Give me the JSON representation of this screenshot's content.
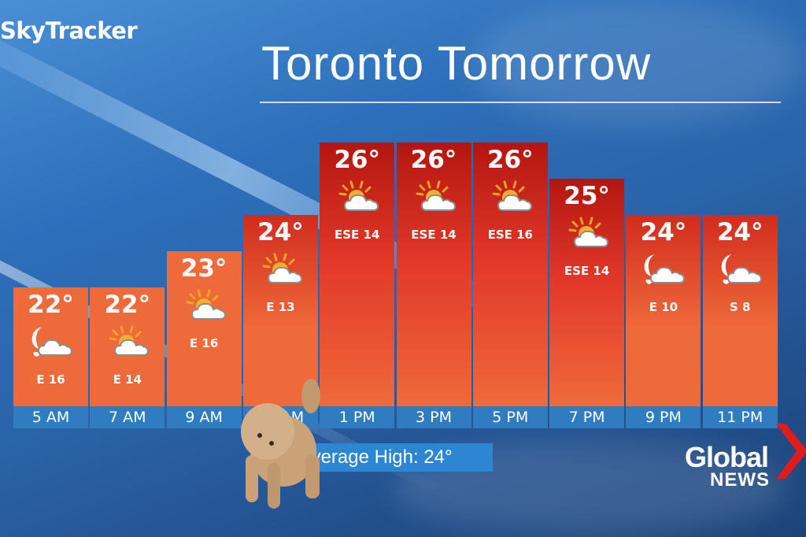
{
  "brand": "SkyTracker",
  "title": "Toronto Tomorrow",
  "average_high": "Average High: 24°",
  "logo": {
    "line1": "Global",
    "line2": "NEWS"
  },
  "colors": {
    "bar_low": "#ef6a3a",
    "bar_high": "#b3160f",
    "time_strip": "#2f7cc0",
    "logo_chevron": "#e21b1b"
  },
  "chart_data": {
    "type": "bar",
    "title": "Toronto Tomorrow",
    "categories": [
      "5 AM",
      "7 AM",
      "9 AM",
      "11 AM",
      "1 PM",
      "3 PM",
      "5 PM",
      "7 PM",
      "9 PM",
      "11 PM"
    ],
    "values": [
      22,
      22,
      23,
      24,
      26,
      26,
      26,
      25,
      24,
      24
    ],
    "unit": "°",
    "labels": [
      "22°",
      "22°",
      "23°",
      "24°",
      "26°",
      "26°",
      "26°",
      "25°",
      "24°",
      "24°"
    ],
    "wind": [
      "E 16",
      "E 14",
      "E 16",
      "E 13",
      "ESE 14",
      "ESE 14",
      "ESE 16",
      "ESE 14",
      "E 10",
      "S 8"
    ],
    "icons": [
      "moon-cloud-icon",
      "sun-cloud-icon",
      "sun-cloud-icon",
      "sun-cloud-icon",
      "sun-cloud-icon",
      "sun-cloud-icon",
      "sun-cloud-icon",
      "sun-cloud-icon",
      "moon-cloud-icon",
      "moon-cloud-icon"
    ]
  }
}
